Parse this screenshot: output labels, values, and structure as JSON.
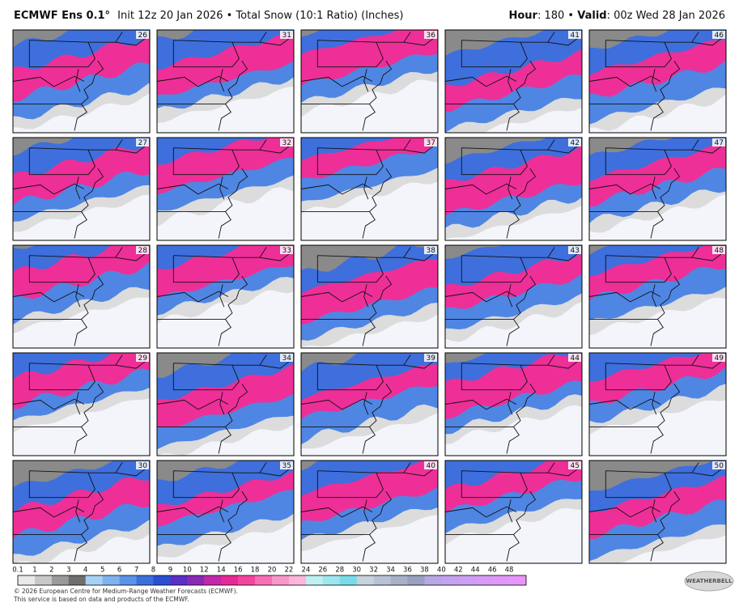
{
  "header": {
    "model": "ECMWF Ens 0.1°",
    "info": "Init 12z 20 Jan 2026 • Total Snow (10:1 Ratio) (Inches)",
    "hour_label": "Hour",
    "hour": ": 180 •",
    "valid_label": "Valid",
    "valid": ": 00z Wed 28 Jan 2026"
  },
  "members": [
    26,
    31,
    36,
    41,
    46,
    27,
    32,
    37,
    42,
    47,
    28,
    33,
    38,
    43,
    48,
    29,
    34,
    39,
    44,
    49,
    30,
    35,
    40,
    45,
    50
  ],
  "colorbar": {
    "labels": [
      0.1,
      1,
      2,
      3,
      4,
      5,
      6,
      7,
      8,
      9,
      10,
      12,
      14,
      16,
      18,
      20,
      22,
      24,
      26,
      28,
      30,
      32,
      34,
      36,
      38,
      40,
      42,
      44,
      46,
      48
    ],
    "colors": [
      "#e9e9e9",
      "#c8c8c8",
      "#9a9a9a",
      "#6e6e6e",
      "#a8d0f5",
      "#7fb3ee",
      "#5b93e6",
      "#3c6fdc",
      "#2a4fd0",
      "#5a2fc6",
      "#8a2ab4",
      "#c02aa8",
      "#e52a96",
      "#f3449e",
      "#f770b5",
      "#f996c9",
      "#fbb6da",
      "#bfeff2",
      "#9de6ee",
      "#7bdbe6",
      "#c7d3de",
      "#b7c3d4",
      "#a9b1c9",
      "#9aa1bf",
      "#b7a7e4",
      "#c3a3ee",
      "#cd9ff2",
      "#d69cf5",
      "#df98f7",
      "#e895fa"
    ]
  },
  "footer": {
    "line1": "© 2026 European Centre for Medium-Range Weather Forecasts (ECMWF).",
    "line2": "This service is based on data and products of the ECMWF.",
    "logo": "WEATHERBELL"
  }
}
